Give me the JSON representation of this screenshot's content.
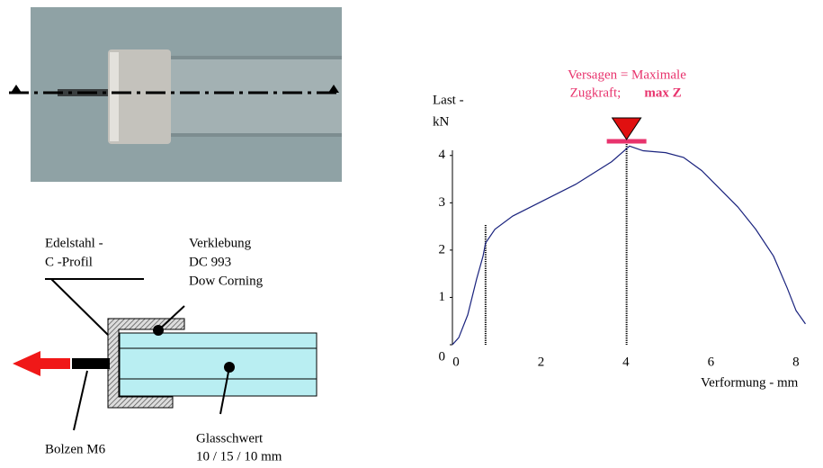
{
  "chart_data": {
    "type": "line",
    "annotation_line1": "Versagen = Maximale",
    "annotation_line2": "Zugkraft;",
    "annotation_bold": "max Z",
    "y_label": [
      "Last -",
      "kN"
    ],
    "x_label": "Verformung -  mm",
    "x": [
      0,
      0.15,
      0.36,
      0.57,
      0.72,
      0.78,
      1.0,
      1.42,
      2.06,
      2.9,
      3.75,
      4.17,
      4.49,
      5.02,
      5.44,
      5.87,
      6.29,
      6.72,
      7.14,
      7.56,
      7.88,
      8.09,
      8.31
    ],
    "values": [
      0,
      0.15,
      0.63,
      1.39,
      1.87,
      2.15,
      2.44,
      2.72,
      3.01,
      3.39,
      3.87,
      4.2,
      4.1,
      4.06,
      3.96,
      3.68,
      3.3,
      2.91,
      2.44,
      1.87,
      1.2,
      0.72,
      0.44
    ],
    "color": "#1a237e",
    "vlines": [
      {
        "x": 0.78,
        "y": 2.55
      },
      {
        "x": 4.1,
        "y": 4.3
      }
    ],
    "xlim": [
      0,
      8.3
    ],
    "ylim": [
      0,
      4.3
    ],
    "xticks": [
      0,
      2,
      4,
      6,
      8
    ],
    "yticks": [
      0,
      1,
      2,
      3,
      4
    ]
  },
  "diagram": {
    "steel": [
      "Edelstahl -",
      "C -Profil"
    ],
    "adhesive": [
      "Verklebung",
      "DC 993",
      "Dow Corning"
    ],
    "bolt": "Bolzen M6",
    "glass": [
      "Glasschwert",
      "10 / 15 / 10 mm"
    ]
  }
}
